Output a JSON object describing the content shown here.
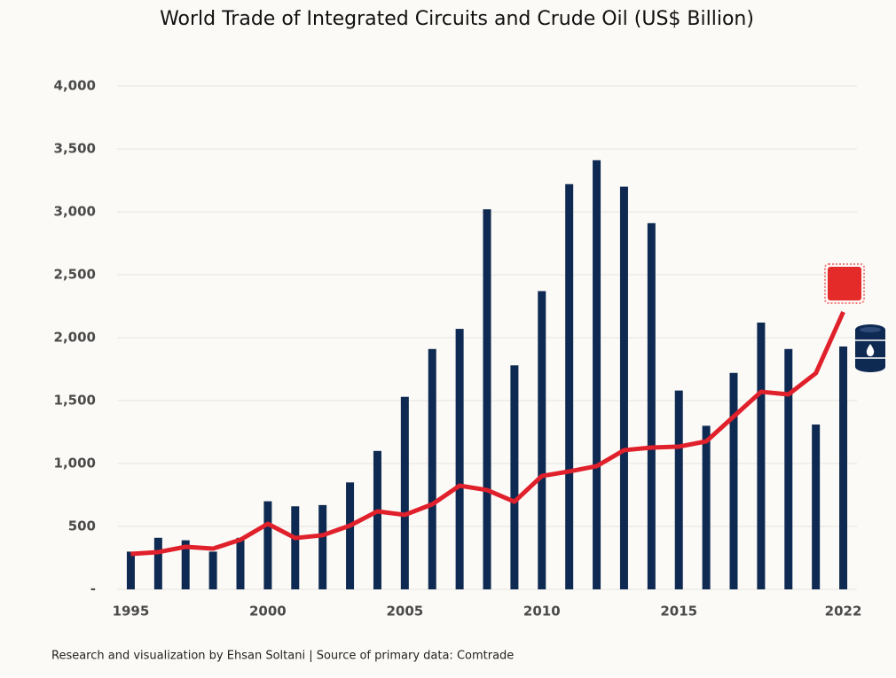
{
  "chart_data": {
    "type": "bar-line",
    "title": "World Trade of Integrated Circuits and Crude Oil (US$ Billion)",
    "footnote": "Research and visualization by Ehsan Soltani | Source of primary data: Comtrade",
    "categories": [
      "1995",
      null,
      null,
      null,
      null,
      "2000",
      null,
      null,
      null,
      null,
      "2005",
      null,
      null,
      null,
      null,
      "2010",
      null,
      null,
      null,
      null,
      "2015",
      null,
      null,
      null,
      null,
      null,
      "2022"
    ],
    "series": [
      {
        "type": "bar",
        "color": "#0f2a52",
        "values": [
          300,
          410,
          390,
          300,
          410,
          700,
          660,
          670,
          850,
          1100,
          1530,
          1910,
          2070,
          3020,
          1780,
          2370,
          3220,
          3410,
          3200,
          2910,
          1580,
          1300,
          1720,
          2120,
          1910,
          1310,
          1930
        ]
      },
      {
        "type": "line",
        "color": "#e0202b",
        "values": [
          282,
          296,
          338,
          324,
          394,
          521,
          408,
          430,
          507,
          620,
          592,
          676,
          824,
          789,
          697,
          901,
          937,
          979,
          1106,
          1127,
          1134,
          1176,
          1373,
          1570,
          1549,
          1718,
          2204
        ]
      }
    ],
    "ylim": [
      0,
      4000
    ],
    "yticks": [
      {
        "value": 0,
        "label": "-"
      },
      500,
      {
        "value": 1000,
        "label": "1,000"
      },
      {
        "value": 1500,
        "label": "1,500"
      },
      {
        "value": 2000,
        "label": "2,000"
      },
      {
        "value": 2500,
        "label": "2,500"
      },
      {
        "value": 3000,
        "label": "3,000"
      },
      {
        "value": 3500,
        "label": "3,500"
      },
      {
        "value": 4000,
        "label": "4,000"
      }
    ],
    "grid": true
  }
}
